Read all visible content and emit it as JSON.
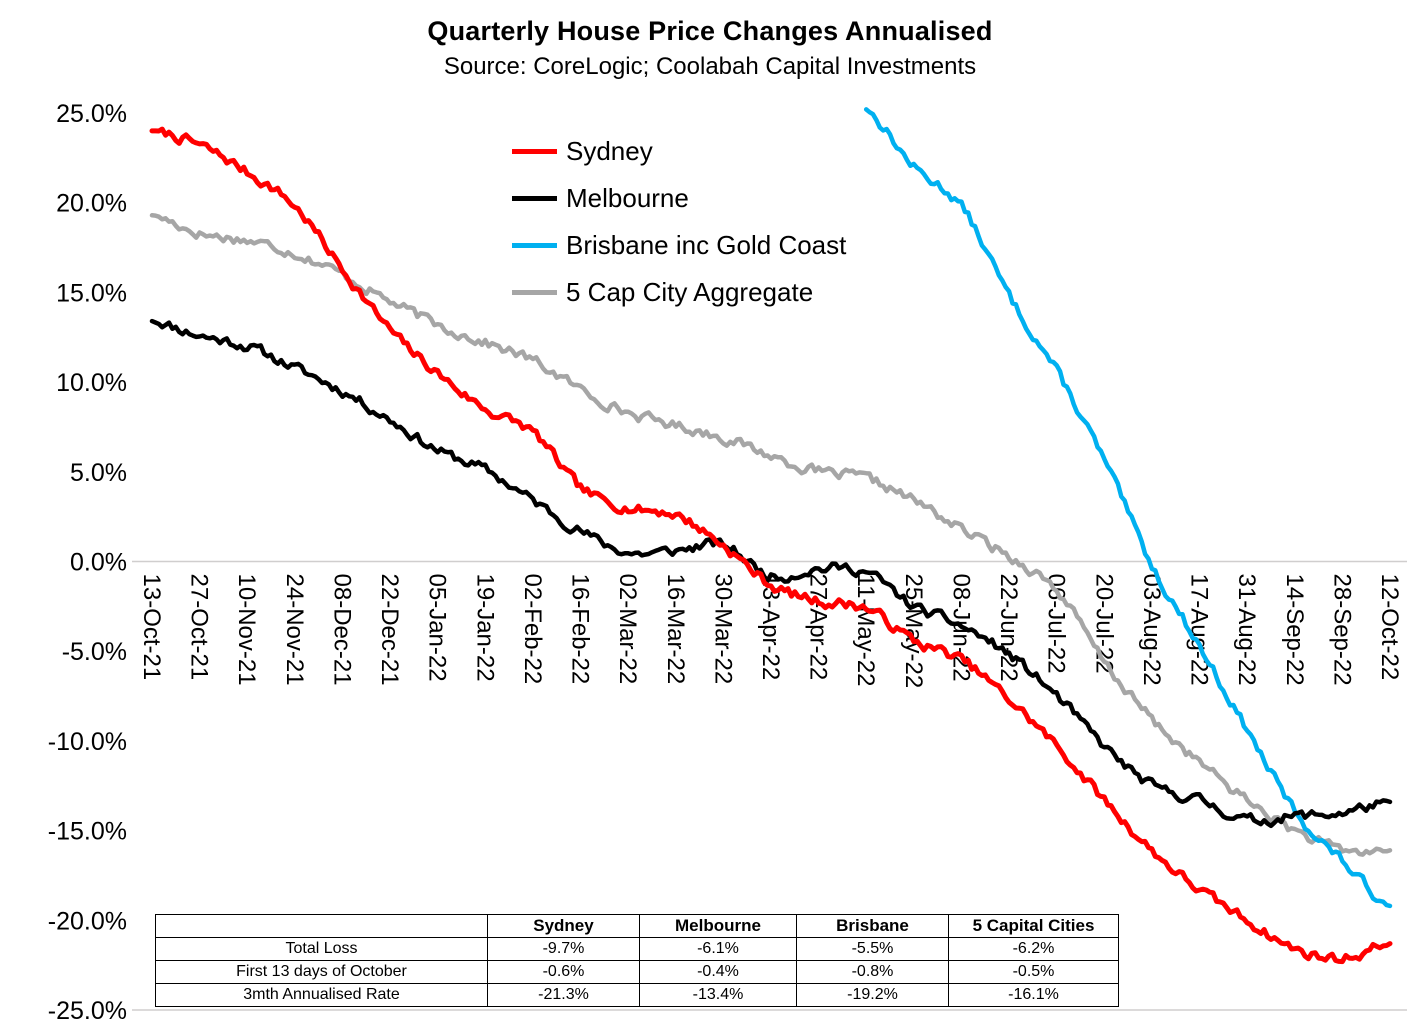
{
  "header": {
    "title": "Quarterly House Price Changes Annualised",
    "subtitle": "Source: CoreLogic; Coolabah Capital Investments"
  },
  "chart_data": {
    "type": "line",
    "title": "Quarterly House Price Changes Annualised",
    "subtitle": "Source: CoreLogic; Coolabah Capital Investments",
    "xlabel": "",
    "ylabel": "",
    "ylim": [
      -25,
      25
    ],
    "y_tick_step": 5,
    "y_ticks": [
      "25.0%",
      "20.0%",
      "15.0%",
      "10.0%",
      "5.0%",
      "0.0%",
      "-5.0%",
      "-10.0%",
      "-15.0%",
      "-20.0%",
      "-25.0%"
    ],
    "grid": "zero-line-only",
    "x_tick_rotation": 90,
    "legend_position": "inside-top-left",
    "categories": [
      "13-Oct-21",
      "27-Oct-21",
      "10-Nov-21",
      "24-Nov-21",
      "08-Dec-21",
      "22-Dec-21",
      "05-Jan-22",
      "19-Jan-22",
      "02-Feb-22",
      "16-Feb-22",
      "02-Mar-22",
      "16-Mar-22",
      "30-Mar-22",
      "13-Apr-22",
      "27-Apr-22",
      "11-May-22",
      "25-May-22",
      "08-Jun-22",
      "22-Jun-22",
      "06-Jul-22",
      "20-Jul-22",
      "03-Aug-22",
      "17-Aug-22",
      "31-Aug-22",
      "14-Sep-22",
      "28-Sep-22",
      "12-Oct-22"
    ],
    "series": [
      {
        "name": "Sydney",
        "color": "#FF0000",
        "width": 5,
        "values": [
          24.0,
          23.2,
          21.7,
          19.8,
          16.3,
          12.9,
          10.5,
          8.5,
          7.2,
          4.1,
          3.0,
          2.6,
          0.9,
          -1.3,
          -2.2,
          -2.6,
          -4.4,
          -5.5,
          -7.7,
          -10.3,
          -13.3,
          -16.1,
          -18.3,
          -20.0,
          -21.6,
          -22.1,
          -21.3
        ]
      },
      {
        "name": "Melbourne",
        "color": "#000000",
        "width": 4.5,
        "values": [
          13.4,
          12.6,
          12.0,
          10.8,
          9.5,
          7.9,
          6.2,
          5.1,
          3.4,
          1.7,
          0.5,
          0.6,
          0.9,
          -0.8,
          -0.4,
          -0.6,
          -2.5,
          -3.6,
          -5.2,
          -7.5,
          -10.3,
          -12.5,
          -13.3,
          -14.4,
          -14.2,
          -14.0,
          -13.4
        ]
      },
      {
        "name": "Brisbane inc Gold Coast",
        "color": "#00B0F0",
        "width": 4.5,
        "values": [
          null,
          null,
          null,
          null,
          null,
          null,
          null,
          null,
          null,
          null,
          null,
          null,
          null,
          null,
          null,
          25.2,
          22.0,
          19.8,
          14.8,
          10.6,
          5.6,
          -0.2,
          -4.7,
          -9.4,
          -13.9,
          -16.7,
          -19.2
        ]
      },
      {
        "name": "5 Cap City Aggregate",
        "color": "#A6A6A6",
        "width": 4.5,
        "values": [
          19.3,
          18.3,
          17.9,
          17.2,
          16.0,
          14.5,
          13.2,
          12.2,
          11.2,
          9.6,
          8.3,
          7.6,
          6.9,
          5.9,
          5.0,
          4.6,
          3.4,
          1.8,
          0.3,
          -1.6,
          -5.6,
          -8.8,
          -11.2,
          -13.3,
          -15.0,
          -16.1,
          -16.1
        ]
      }
    ]
  },
  "table": {
    "headers": [
      "",
      "Sydney",
      "Melbourne",
      "Brisbane",
      "5 Capital Cities"
    ],
    "rows": [
      {
        "label": "Total Loss",
        "values": [
          "-9.7%",
          "-6.1%",
          "-5.5%",
          "-6.2%"
        ]
      },
      {
        "label": "First 13 days of October",
        "values": [
          "-0.6%",
          "-0.4%",
          "-0.8%",
          "-0.5%"
        ]
      },
      {
        "label": "3mth Annualised Rate",
        "values": [
          "-21.3%",
          "-13.4%",
          "-19.2%",
          "-16.1%"
        ]
      }
    ]
  }
}
